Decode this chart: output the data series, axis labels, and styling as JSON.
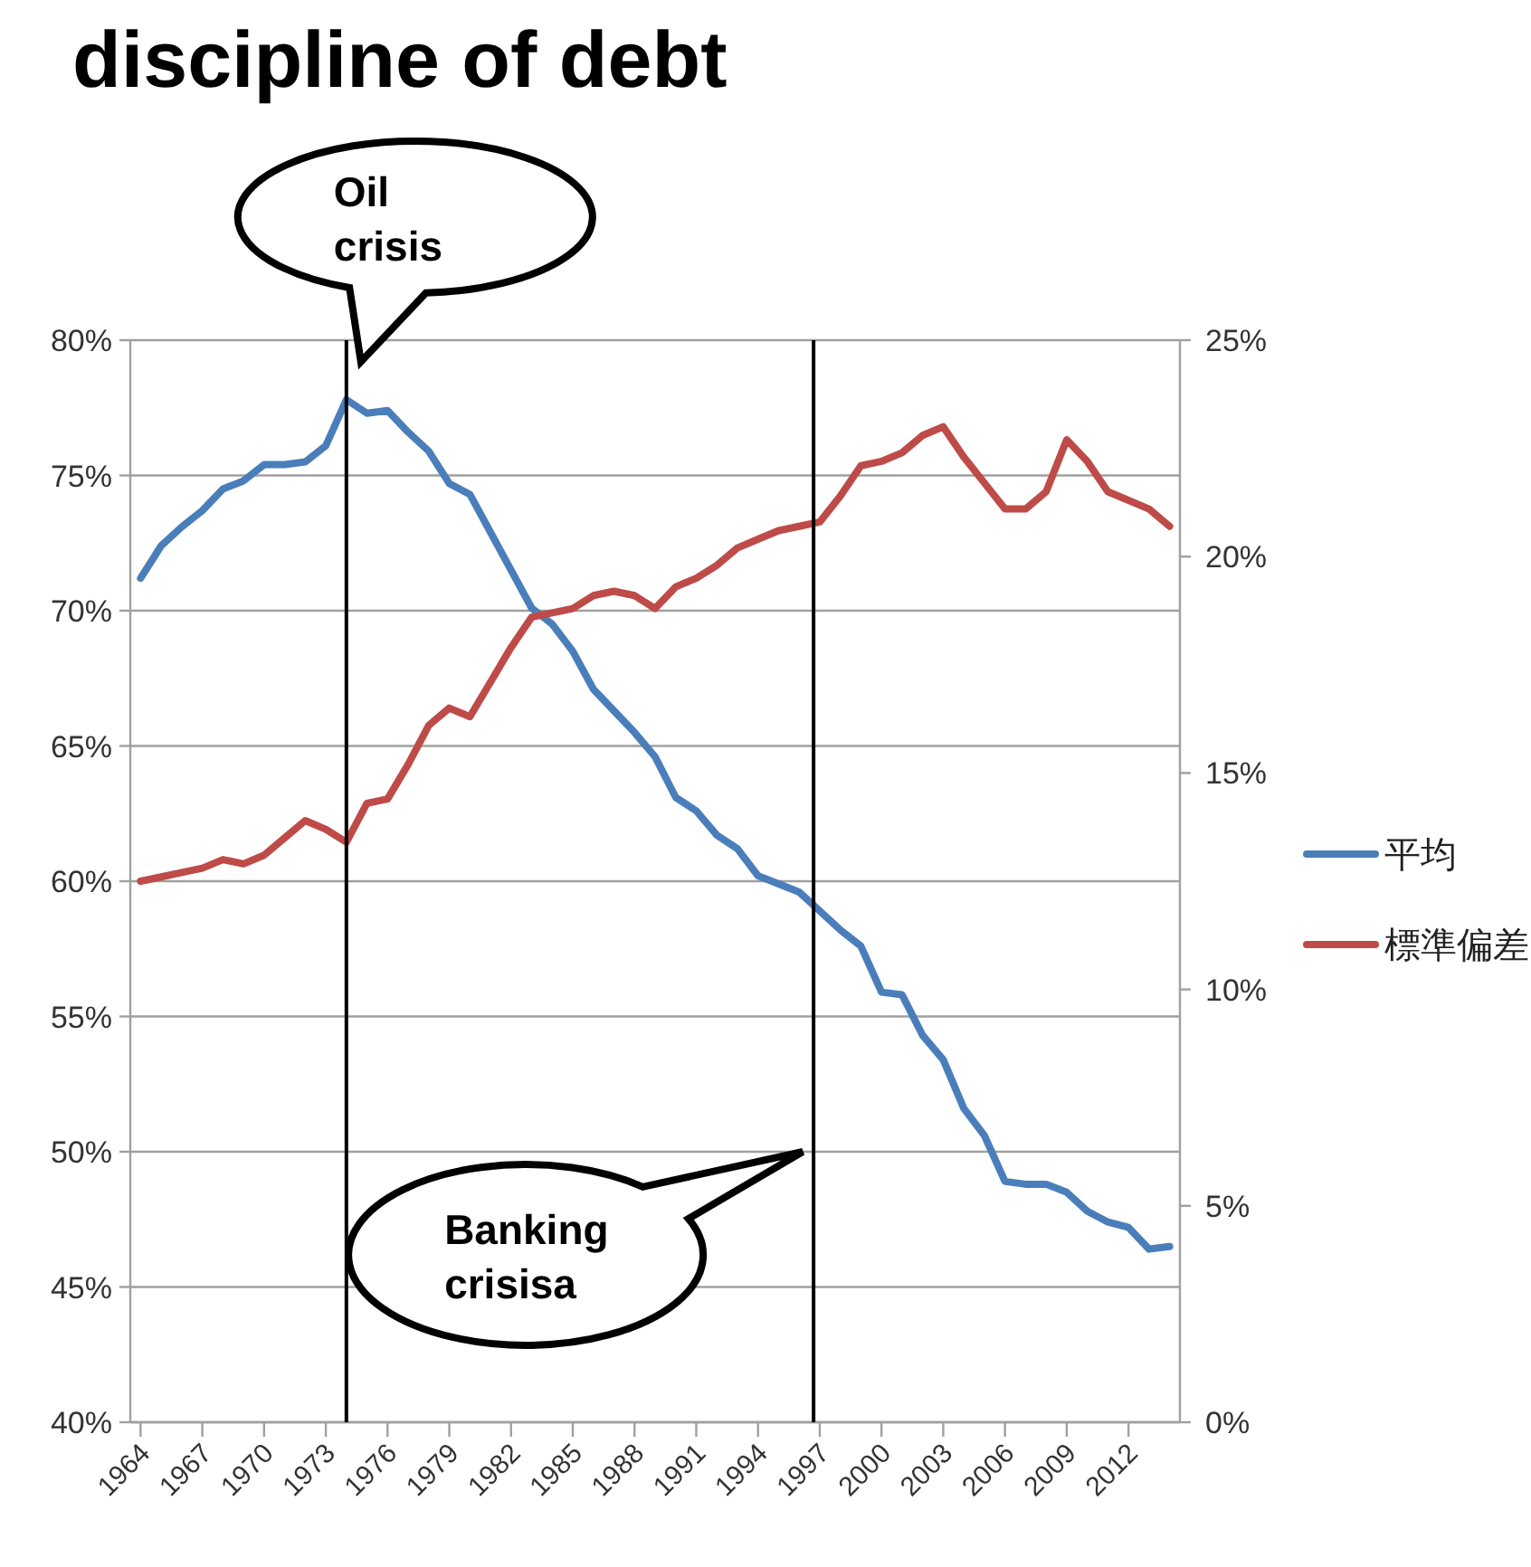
{
  "chart_data": {
    "type": "line",
    "title": "discipline of debt",
    "x": [
      1964,
      1965,
      1966,
      1967,
      1968,
      1969,
      1970,
      1971,
      1972,
      1973,
      1974,
      1975,
      1976,
      1977,
      1978,
      1979,
      1980,
      1981,
      1982,
      1983,
      1984,
      1985,
      1986,
      1987,
      1988,
      1989,
      1990,
      1991,
      1992,
      1993,
      1994,
      1995,
      1996,
      1997,
      1998,
      1999,
      2000,
      2001,
      2002,
      2003,
      2004,
      2005,
      2006,
      2007,
      2008,
      2009,
      2010,
      2011,
      2012,
      2013,
      2014
    ],
    "series": [
      {
        "name": "平均",
        "color": "#4a7ebb",
        "values": [
          71.2,
          72.4,
          73.1,
          73.7,
          74.5,
          74.8,
          75.4,
          75.4,
          75.5,
          76.1,
          77.8,
          77.3,
          77.4,
          76.6,
          75.9,
          74.7,
          74.3,
          72.9,
          71.5,
          70.1,
          69.5,
          68.5,
          67.1,
          66.3,
          65.5,
          64.6,
          63.1,
          62.6,
          61.7,
          61.2,
          60.2,
          59.9,
          59.6,
          58.9,
          58.2,
          57.6,
          55.9,
          55.8,
          54.3,
          53.4,
          51.6,
          50.6,
          48.9,
          48.8,
          48.8,
          48.5,
          47.8,
          47.4,
          47.2,
          46.4,
          46.5
        ]
      },
      {
        "name": "標準偏差",
        "color": "#be4b48",
        "axis": "y2",
        "values": [
          12.5,
          12.6,
          12.7,
          12.8,
          13.0,
          12.9,
          13.1,
          13.5,
          13.9,
          13.7,
          13.4,
          14.3,
          14.4,
          15.2,
          16.1,
          16.5,
          16.3,
          17.1,
          17.9,
          18.6,
          18.7,
          18.8,
          19.1,
          19.2,
          19.1,
          18.8,
          19.3,
          19.5,
          19.8,
          20.2,
          20.4,
          20.6,
          20.7,
          20.8,
          21.4,
          22.1,
          22.2,
          22.4,
          22.8,
          23.0,
          22.3,
          21.7,
          21.1,
          21.1,
          21.5,
          22.7,
          22.2,
          21.5,
          21.3,
          21.1,
          20.7
        ]
      }
    ],
    "xlim": [
      1963.5,
      2014.5
    ],
    "xticks": [
      1964,
      1967,
      1970,
      1973,
      1976,
      1979,
      1982,
      1985,
      1988,
      1991,
      1994,
      1997,
      2000,
      2003,
      2006,
      2009,
      2012
    ],
    "ylim": [
      40,
      80
    ],
    "yticks": [
      {
        "value": 40,
        "label": "40%"
      },
      {
        "value": 45,
        "label": "45%"
      },
      {
        "value": 50,
        "label": "50%"
      },
      {
        "value": 55,
        "label": "55%"
      },
      {
        "value": 60,
        "label": "60%"
      },
      {
        "value": 65,
        "label": "65%"
      },
      {
        "value": 70,
        "label": "70%"
      },
      {
        "value": 75,
        "label": "75%"
      },
      {
        "value": 80,
        "label": "80%"
      }
    ],
    "y2lim": [
      0,
      25
    ],
    "y2ticks": [
      {
        "value": 0,
        "label": "0%"
      },
      {
        "value": 5,
        "label": "5%"
      },
      {
        "value": 10,
        "label": "10%"
      },
      {
        "value": 15,
        "label": "15%"
      },
      {
        "value": 20,
        "label": "20%"
      },
      {
        "value": 25,
        "label": "25%"
      }
    ],
    "ref_lines": [
      {
        "axis": "x",
        "value": 1974,
        "color": "#000000"
      },
      {
        "axis": "x",
        "value": 1996.7,
        "color": "#000000"
      }
    ],
    "annotations": [
      "Oil crisis",
      "Banking crisisa"
    ],
    "grid": "y",
    "legend": "right",
    "marker": "none",
    "line_style": "solid"
  }
}
